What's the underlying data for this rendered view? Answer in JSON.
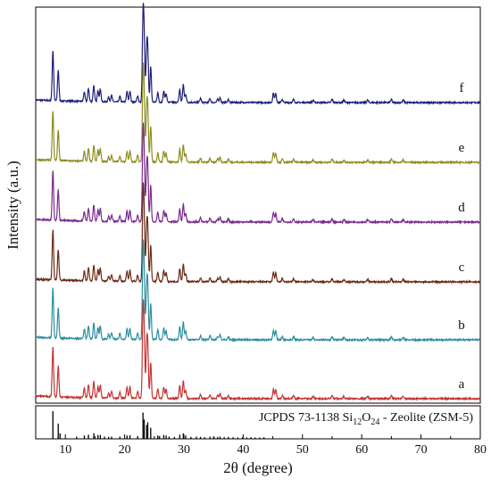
{
  "chart_data": {
    "type": "line",
    "xlabel": "2θ (degree)",
    "ylabel": "Intensity (a.u.)",
    "xlim": [
      5,
      80
    ],
    "x_ticks": [
      10,
      20,
      30,
      40,
      50,
      60,
      70,
      80
    ],
    "y_ticks_shown": false,
    "grid": false,
    "peaks": [
      {
        "x": 7.9,
        "h": 0.62
      },
      {
        "x": 8.8,
        "h": 0.38
      },
      {
        "x": 13.2,
        "h": 0.12
      },
      {
        "x": 13.9,
        "h": 0.16
      },
      {
        "x": 14.8,
        "h": 0.2
      },
      {
        "x": 15.5,
        "h": 0.14
      },
      {
        "x": 15.9,
        "h": 0.16
      },
      {
        "x": 17.3,
        "h": 0.06
      },
      {
        "x": 17.8,
        "h": 0.08
      },
      {
        "x": 19.2,
        "h": 0.07
      },
      {
        "x": 20.4,
        "h": 0.13
      },
      {
        "x": 20.9,
        "h": 0.14
      },
      {
        "x": 22.2,
        "h": 0.08
      },
      {
        "x": 23.1,
        "h": 1.0
      },
      {
        "x": 23.3,
        "h": 0.7
      },
      {
        "x": 23.7,
        "h": 0.55
      },
      {
        "x": 23.9,
        "h": 0.6
      },
      {
        "x": 24.4,
        "h": 0.45
      },
      {
        "x": 25.6,
        "h": 0.12
      },
      {
        "x": 26.6,
        "h": 0.14
      },
      {
        "x": 27.0,
        "h": 0.11
      },
      {
        "x": 29.3,
        "h": 0.16
      },
      {
        "x": 29.9,
        "h": 0.22
      },
      {
        "x": 30.3,
        "h": 0.1
      },
      {
        "x": 32.8,
        "h": 0.05
      },
      {
        "x": 34.4,
        "h": 0.05
      },
      {
        "x": 35.7,
        "h": 0.04
      },
      {
        "x": 36.1,
        "h": 0.06
      },
      {
        "x": 37.5,
        "h": 0.04
      },
      {
        "x": 45.1,
        "h": 0.12
      },
      {
        "x": 45.5,
        "h": 0.11
      },
      {
        "x": 46.6,
        "h": 0.04
      },
      {
        "x": 48.5,
        "h": 0.04
      },
      {
        "x": 51.8,
        "h": 0.03
      },
      {
        "x": 55.0,
        "h": 0.04
      },
      {
        "x": 57.0,
        "h": 0.03
      },
      {
        "x": 61.0,
        "h": 0.03
      },
      {
        "x": 65.0,
        "h": 0.04
      },
      {
        "x": 67.0,
        "h": 0.03
      }
    ],
    "series": [
      {
        "name": "f",
        "color": "#1f1f7a"
      },
      {
        "name": "e",
        "color": "#8d8d22"
      },
      {
        "name": "d",
        "color": "#7a2a8e"
      },
      {
        "name": "c",
        "color": "#6b2a17"
      },
      {
        "name": "b",
        "color": "#2d8ea0"
      },
      {
        "name": "a",
        "color": "#c43434"
      }
    ],
    "reference": {
      "label_prefix": "JCPDS 73-1138  Si",
      "sub1": "12",
      "label_mid": "O",
      "sub2": "24",
      "label_suffix": " - Zeolite (ZSM-5)",
      "color": "#000000",
      "sticks": [
        {
          "x": 7.9,
          "h": 1.0
        },
        {
          "x": 8.8,
          "h": 0.55
        },
        {
          "x": 9.1,
          "h": 0.2
        },
        {
          "x": 11.9,
          "h": 0.08
        },
        {
          "x": 13.2,
          "h": 0.12
        },
        {
          "x": 13.9,
          "h": 0.15
        },
        {
          "x": 14.8,
          "h": 0.2
        },
        {
          "x": 15.5,
          "h": 0.14
        },
        {
          "x": 15.9,
          "h": 0.14
        },
        {
          "x": 16.6,
          "h": 0.08
        },
        {
          "x": 17.3,
          "h": 0.07
        },
        {
          "x": 17.8,
          "h": 0.08
        },
        {
          "x": 19.2,
          "h": 0.08
        },
        {
          "x": 20.4,
          "h": 0.12
        },
        {
          "x": 20.9,
          "h": 0.13
        },
        {
          "x": 22.2,
          "h": 0.1
        },
        {
          "x": 23.1,
          "h": 0.95
        },
        {
          "x": 23.3,
          "h": 0.7
        },
        {
          "x": 23.7,
          "h": 0.5
        },
        {
          "x": 23.9,
          "h": 0.6
        },
        {
          "x": 24.4,
          "h": 0.4
        },
        {
          "x": 25.6,
          "h": 0.12
        },
        {
          "x": 25.9,
          "h": 0.1
        },
        {
          "x": 26.6,
          "h": 0.14
        },
        {
          "x": 27.0,
          "h": 0.12
        },
        {
          "x": 27.5,
          "h": 0.08
        },
        {
          "x": 28.4,
          "h": 0.07
        },
        {
          "x": 29.3,
          "h": 0.15
        },
        {
          "x": 29.9,
          "h": 0.2
        },
        {
          "x": 30.3,
          "h": 0.12
        },
        {
          "x": 31.2,
          "h": 0.07
        },
        {
          "x": 32.1,
          "h": 0.08
        },
        {
          "x": 32.8,
          "h": 0.07
        },
        {
          "x": 33.5,
          "h": 0.06
        },
        {
          "x": 34.4,
          "h": 0.08
        },
        {
          "x": 35.1,
          "h": 0.06
        },
        {
          "x": 35.7,
          "h": 0.07
        },
        {
          "x": 36.1,
          "h": 0.08
        },
        {
          "x": 36.8,
          "h": 0.06
        },
        {
          "x": 37.5,
          "h": 0.07
        },
        {
          "x": 38.3,
          "h": 0.06
        },
        {
          "x": 39.1,
          "h": 0.05
        },
        {
          "x": 39.9,
          "h": 0.06
        },
        {
          "x": 40.6,
          "h": 0.05
        },
        {
          "x": 41.3,
          "h": 0.06
        },
        {
          "x": 42.0,
          "h": 0.05
        },
        {
          "x": 42.8,
          "h": 0.05
        },
        {
          "x": 43.5,
          "h": 0.06
        }
      ]
    },
    "ymax_ref": 100
  }
}
